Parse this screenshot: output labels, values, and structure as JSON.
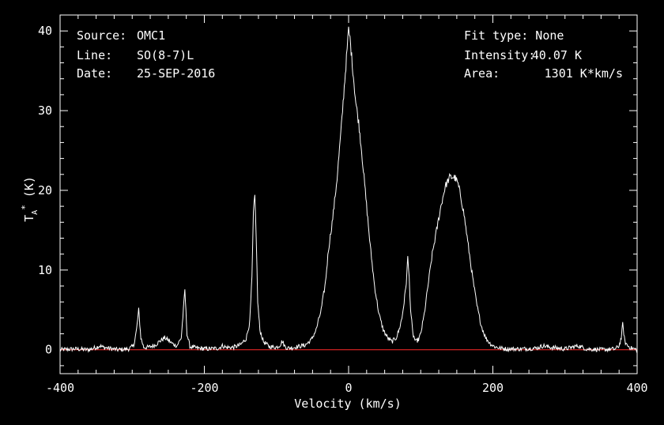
{
  "header": {
    "source_label": "Source:",
    "source_value": "OMC1",
    "line_label": "Line:",
    "line_value": "SO(8-7)L",
    "date_label": "Date:",
    "date_value": "25-SEP-2016",
    "fit_type": "Fit type: None",
    "intensity_label": "Intensity:",
    "intensity_value": "40.07 K",
    "area_label": "Area:",
    "area_value": "1301 K*km/s"
  },
  "colors": {
    "background": "#000000",
    "foreground": "#ffffff",
    "baseline": "#ff2a2a"
  },
  "chart_data": {
    "type": "line",
    "title": "",
    "xlabel": "Velocity (km/s)",
    "ylabel": "T_A* (K)",
    "xlim": [
      -400,
      400
    ],
    "ylim": [
      -3,
      42
    ],
    "xticks": [
      -400,
      -200,
      0,
      200,
      400
    ],
    "yticks": [
      0,
      10,
      20,
      30,
      40
    ],
    "grid": false,
    "baseline": 0,
    "series": [
      {
        "x": [
          -400,
          -380,
          -360,
          -350,
          -345,
          -340,
          -320,
          -305,
          -298,
          -294,
          -291,
          -288,
          -284,
          -278,
          -268,
          -260,
          -255,
          -250,
          -245,
          -238,
          -232,
          -229,
          -227,
          -224,
          -220,
          -210,
          -195,
          -180,
          -175,
          -170,
          -160,
          -150,
          -142,
          -137,
          -134,
          -132,
          -130,
          -128,
          -126,
          -123,
          -118,
          -110,
          -100,
          -95,
          -92,
          -89,
          -85,
          -75,
          -60,
          -52,
          -45,
          -38,
          -32,
          -28,
          -22,
          -16,
          -10,
          -6,
          -3,
          -1,
          0,
          2,
          5,
          10,
          14,
          18,
          24,
          30,
          36,
          42,
          48,
          54,
          60,
          66,
          70,
          74,
          77,
          80,
          82,
          84,
          86,
          89,
          93,
          97,
          100,
          105,
          110,
          116,
          122,
          128,
          134,
          140,
          145,
          148,
          151,
          155,
          160,
          166,
          172,
          178,
          184,
          190,
          196,
          202,
          210,
          220,
          240,
          260,
          270,
          280,
          300,
          318,
          330,
          350,
          370,
          375,
          378,
          380,
          383,
          387,
          392,
          400
        ],
        "y": [
          0,
          0.1,
          0,
          0.3,
          0.5,
          0.3,
          0,
          0.1,
          0.5,
          2.5,
          5.0,
          1.5,
          0.3,
          0.3,
          0.6,
          1.2,
          1.5,
          1.2,
          0.8,
          0.5,
          1.5,
          5.0,
          7.5,
          2.0,
          0.4,
          0.2,
          0.1,
          0.2,
          0.5,
          0.3,
          0.3,
          0.6,
          1.4,
          3.5,
          9.0,
          17.0,
          19.3,
          14.0,
          6.0,
          2.5,
          1.0,
          0.4,
          0.3,
          0.6,
          1.1,
          0.5,
          0.2,
          0.3,
          0.6,
          1.2,
          2.5,
          5.0,
          8.5,
          12.5,
          16.5,
          21.5,
          28.0,
          33.0,
          36.5,
          39.0,
          40.1,
          39.0,
          36.0,
          31.0,
          28.5,
          25.0,
          19.0,
          13.0,
          8.0,
          4.5,
          2.5,
          1.5,
          1.0,
          1.5,
          2.5,
          4.0,
          6.0,
          8.5,
          11.5,
          9.0,
          5.0,
          2.0,
          1.0,
          1.3,
          2.0,
          4.5,
          8.0,
          12.0,
          15.0,
          18.0,
          20.5,
          21.6,
          21.7,
          21.5,
          21.0,
          19.5,
          17.0,
          13.0,
          9.0,
          5.5,
          3.0,
          1.5,
          0.8,
          0.4,
          0.2,
          0.1,
          0.1,
          0.2,
          0.5,
          0.3,
          0.1,
          0.5,
          0.1,
          0,
          0.1,
          0.5,
          1.5,
          3.2,
          1.0,
          0.5,
          0.2,
          0
        ]
      }
    ]
  }
}
